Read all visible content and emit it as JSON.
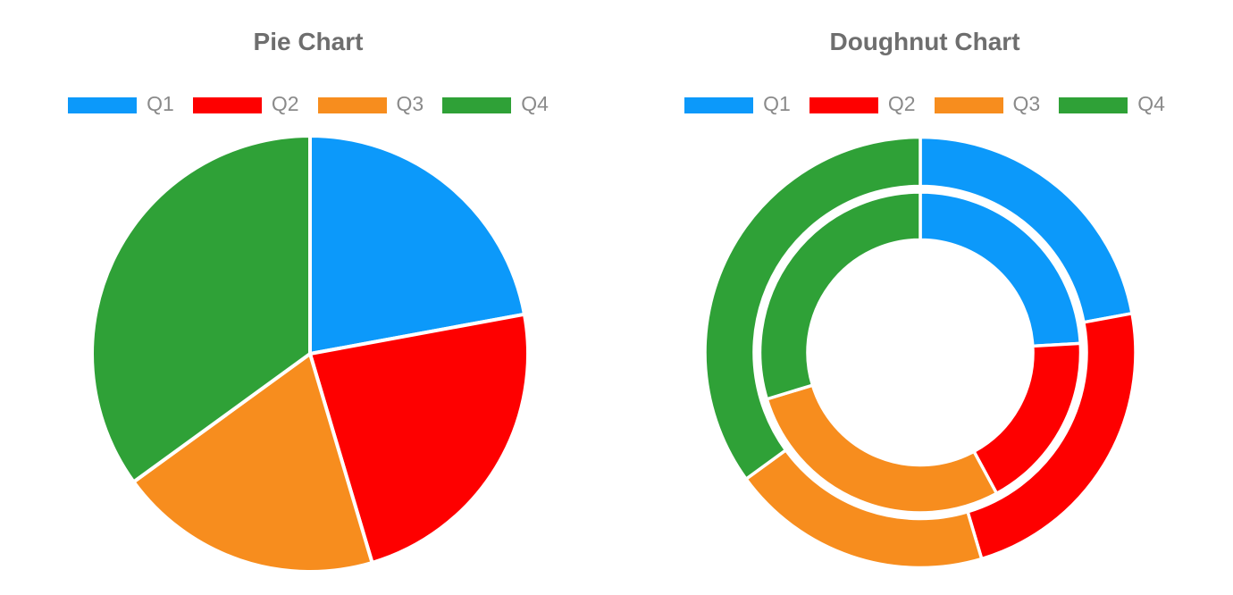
{
  "page": {
    "background": "#ffffff",
    "title_color": "#6e6e6e",
    "legend_text_color": "#8a8a8a",
    "slice_border_color": "#ffffff"
  },
  "chart_data": [
    {
      "type": "pie",
      "title": "Pie Chart",
      "categories": [
        "Q1",
        "Q2",
        "Q3",
        "Q4"
      ],
      "values": [
        22.1,
        23.3,
        19.6,
        35.0
      ],
      "values_unit": "percent-estimated-from-slice-angles",
      "colors": [
        "#0c99fa",
        "#fe0000",
        "#f78d1e",
        "#2fa137"
      ],
      "legend_position": "top",
      "start_angle_deg": 0,
      "direction": "clockwise"
    },
    {
      "type": "doughnut",
      "title": "Doughnut Chart",
      "categories": [
        "Q1",
        "Q2",
        "Q3",
        "Q4"
      ],
      "series": [
        {
          "name": "outer ring",
          "values": [
            22.1,
            23.3,
            19.6,
            35.0
          ]
        },
        {
          "name": "inner ring",
          "values": [
            24.1,
            18.0,
            28.2,
            29.7
          ]
        }
      ],
      "values_unit": "percent-estimated-from-slice-angles",
      "colors": [
        "#0c99fa",
        "#fe0000",
        "#f78d1e",
        "#2fa137"
      ],
      "legend_position": "top",
      "start_angle_deg": 0,
      "direction": "clockwise"
    }
  ]
}
